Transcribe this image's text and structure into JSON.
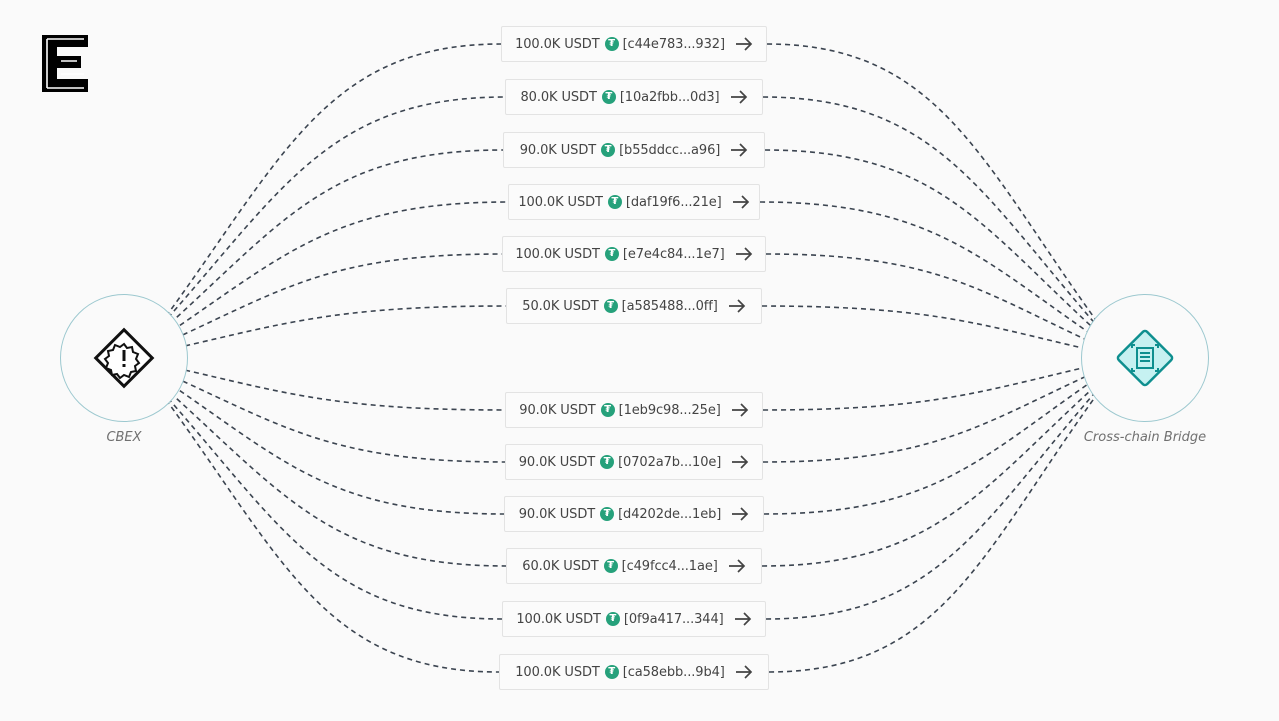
{
  "source": {
    "label": "CBEX",
    "icon": "exclamation-badge-icon"
  },
  "target": {
    "label": "Cross-chain Bridge",
    "icon": "bridge-document-icon"
  },
  "token_icon": "tether-icon",
  "transfers": [
    {
      "amount": "100.0K USDT",
      "hash": "[c44e783...932]"
    },
    {
      "amount": "80.0K USDT",
      "hash": "[10a2fbb...0d3]"
    },
    {
      "amount": "90.0K USDT",
      "hash": "[b55ddcc...a96]"
    },
    {
      "amount": "100.0K USDT",
      "hash": "[daf19f6...21e]"
    },
    {
      "amount": "100.0K USDT",
      "hash": "[e7e4c84...1e7]"
    },
    {
      "amount": "50.0K USDT",
      "hash": "[a585488...0ff]"
    },
    {
      "amount": "90.0K USDT",
      "hash": "[1eb9c98...25e]"
    },
    {
      "amount": "90.0K USDT",
      "hash": "[0702a7b...10e]"
    },
    {
      "amount": "90.0K USDT",
      "hash": "[d4202de...1eb]"
    },
    {
      "amount": "60.0K USDT",
      "hash": "[c49fcc4...1ae]"
    },
    {
      "amount": "100.0K USDT",
      "hash": "[0f9a417...344]"
    },
    {
      "amount": "100.0K USDT",
      "hash": "[ca58ebb...9b4]"
    }
  ],
  "colors": {
    "edge": "#3b4450",
    "node_ring": "#9cc8cf",
    "bridge_accent": "#0e8f8f",
    "bridge_fill": "#c6f1f1",
    "tether": "#26a17b"
  }
}
